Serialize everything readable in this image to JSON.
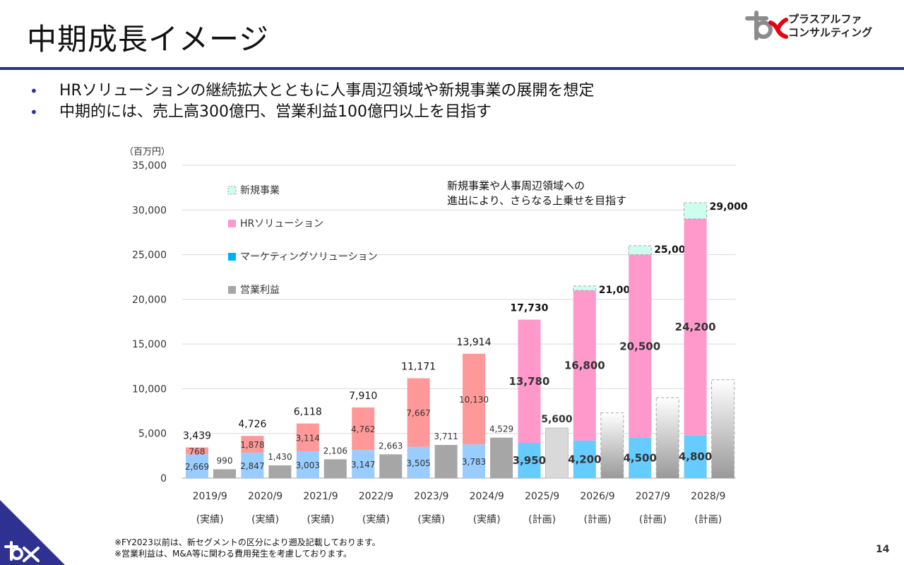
{
  "page": {
    "title": "中期成長イメージ",
    "company": [
      "プラスアルファ",
      "コンサルティング"
    ],
    "bullets": [
      "HRソリューションの継続拡大とともに人事周辺領域や新規事業の展開を想定",
      "中期的には、売上高300億円、営業利益100億円以上を目指す"
    ],
    "notes": [
      "※FY2023以前は、新セグメントの区分により遡及記載しております。",
      "※営業利益は、M&A等に関わる費用発生を考慮しております。"
    ],
    "page_number": "14"
  },
  "chart_data": {
    "type": "bar",
    "unit_label": "（百万円）",
    "ylim": [
      0,
      35000
    ],
    "yticks": [
      0,
      5000,
      10000,
      15000,
      20000,
      25000,
      30000,
      35000
    ],
    "ytick_labels": [
      "0",
      "5,000",
      "10,000",
      "15,000",
      "20,000",
      "25,000",
      "30,000",
      "35,000"
    ],
    "grid": true,
    "legend_position": "top-left",
    "annotation": [
      "新規事業や人事周辺領域への",
      "進出により、さらなる上乗せを目指す"
    ],
    "categories": [
      "2019/9",
      "2020/9",
      "2021/9",
      "2022/9",
      "2023/9",
      "2024/9",
      "2025/9",
      "2026/9",
      "2027/9",
      "2028/9"
    ],
    "category_sublabels": [
      "(実績)",
      "(実績)",
      "(実績)",
      "(実績)",
      "(実績)",
      "(実績)",
      "(計画)",
      "(計画)",
      "(計画)",
      "(計画)"
    ],
    "series": [
      {
        "name": "マーケティングソリューション",
        "values": [
          2669,
          2847,
          3003,
          3147,
          3505,
          3783,
          3950,
          4200,
          4500,
          4800
        ],
        "labels": [
          "2,669",
          "2,847",
          "3,003",
          "3,147",
          "3,505",
          "3,783",
          "3,950",
          "4,200",
          "4,500",
          "4,800"
        ],
        "color_actual": "#99ccff",
        "color_plan": "#66ccff"
      },
      {
        "name": "HRソリューション",
        "values": [
          768,
          1878,
          3114,
          4762,
          7667,
          10130,
          13780,
          16800,
          20500,
          24200
        ],
        "labels": [
          "768",
          "1,878",
          "3,114",
          "4,762",
          "7,667",
          "10,130",
          "13,780",
          "16,800",
          "20,500",
          "24,200"
        ],
        "color_actual": "#ff9999",
        "color_plan": "#ff99cc"
      },
      {
        "name": "新規事業",
        "values": [
          0,
          0,
          0,
          0,
          0,
          0,
          0,
          500,
          1000,
          1800
        ],
        "color": "#ccffee"
      },
      {
        "name": "営業利益",
        "values": [
          990,
          1430,
          2106,
          2663,
          3711,
          4529,
          5600,
          7300,
          9000,
          11000
        ],
        "labels": [
          "990",
          "1,430",
          "2,106",
          "2,663",
          "3,711",
          "4,529",
          "5,600",
          "",
          "",
          ""
        ],
        "color": "#a6a6a6"
      }
    ],
    "totals": [
      "3,439",
      "4,726",
      "6,118",
      "7,910",
      "11,171",
      "13,914",
      "17,730",
      "21,000",
      "25,000",
      "29,000"
    ],
    "colors": {
      "new_border": "#a6a6a6",
      "plan_profit": "#d9d9d9"
    }
  }
}
